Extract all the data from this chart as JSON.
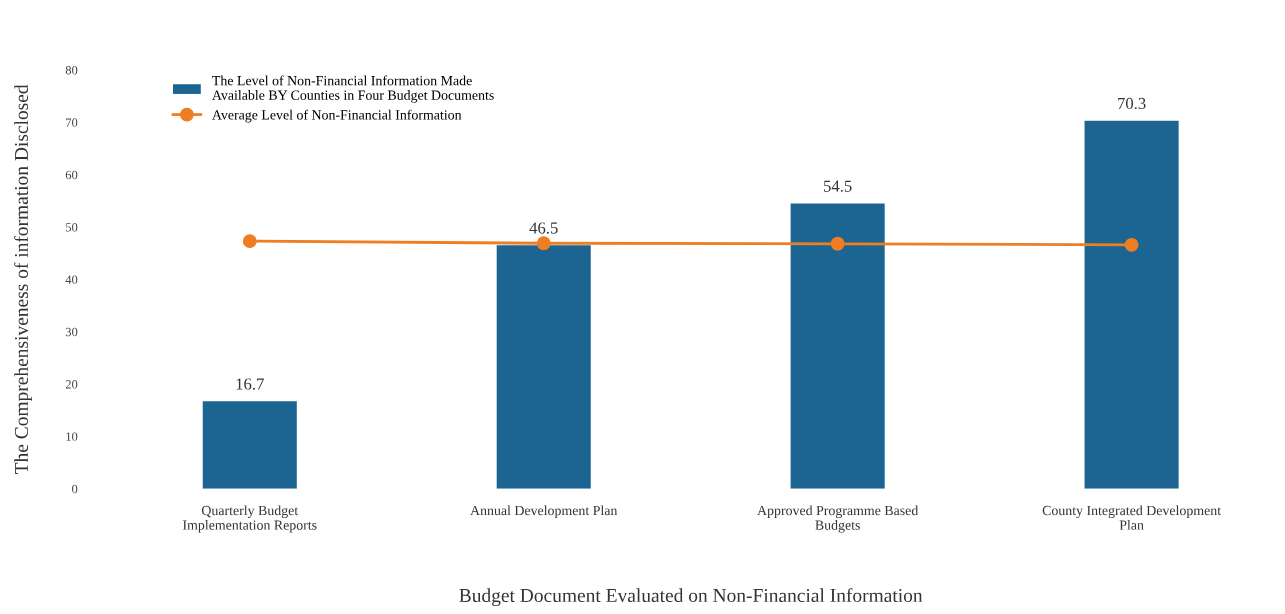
{
  "chart_data": {
    "type": "bar",
    "categories": [
      "Quarterly Budget\nImplementation Reports",
      "Annual Development Plan",
      "Approved Programme Based\nBudgets",
      "County Integrated Development\nPlan"
    ],
    "series": [
      {
        "name": "The Level of Non-Financial Information Made\nAvailable BY Counties in Four Budget Documents",
        "color": "#1c6491",
        "values": [
          16.7,
          46.5,
          54.5,
          70.3
        ],
        "value_labels": [
          "16.7",
          "46.5",
          "54.5",
          "70.3"
        ]
      },
      {
        "name": "Average Level of Non-Financial Information",
        "type": "line",
        "color": "#ef7d22",
        "values": [
          47.3,
          46.9,
          46.8,
          46.6
        ],
        "marker": "circle"
      }
    ],
    "xlabel": "Budget Document Evaluated on Non-Financial Information",
    "ylabel": "The Comprehensiveness of information Disclosed",
    "ylim": [
      0,
      80
    ],
    "yticks": [
      0,
      10,
      20,
      30,
      40,
      50,
      60,
      70,
      80
    ],
    "grid": false,
    "legend": "top left"
  }
}
